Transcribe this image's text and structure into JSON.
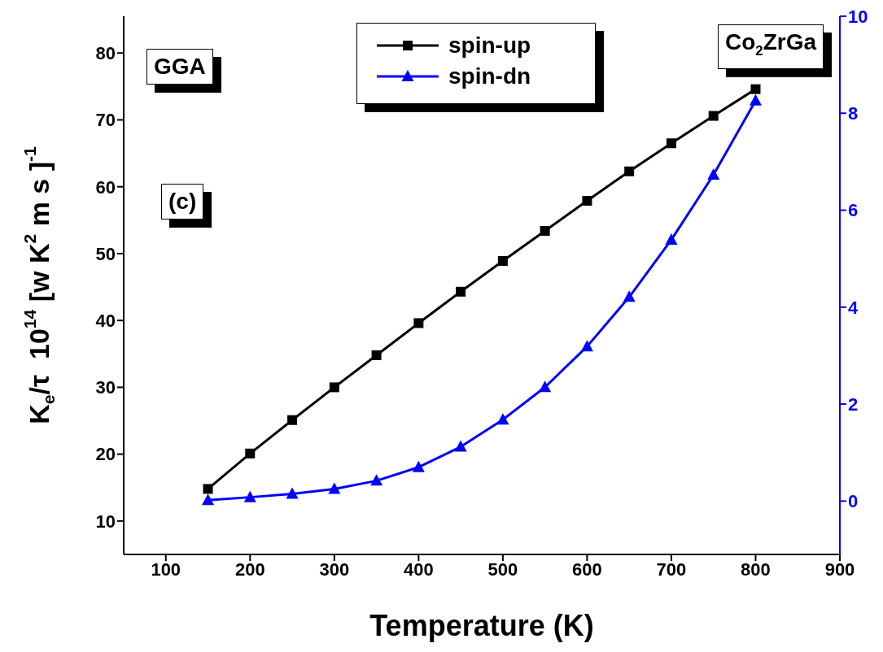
{
  "chart_data": {
    "type": "line",
    "xlabel": "Temperature (K)",
    "ylabel": "K$_{e}$/τ  10$^{14}$ [w K$^{2}$ m s ]$^{-1}$",
    "x": [
      150,
      200,
      250,
      300,
      350,
      400,
      450,
      500,
      550,
      600,
      650,
      700,
      750,
      800
    ],
    "series": [
      {
        "name": "spin-up",
        "color": "#000000",
        "marker": "square",
        "values": [
          14.8,
          20.1,
          25.1,
          30.0,
          34.8,
          39.6,
          44.3,
          48.9,
          53.4,
          57.9,
          62.3,
          66.5,
          70.6,
          74.6
        ]
      },
      {
        "name": "spin-dn",
        "color": "#0000ff",
        "marker": "triangle",
        "axis": "y2",
        "values": [
          0.02,
          0.08,
          0.15,
          0.25,
          0.42,
          0.7,
          1.12,
          1.68,
          2.35,
          3.19,
          4.21,
          5.39,
          6.73,
          8.26
        ]
      }
    ],
    "xlim": [
      50,
      900
    ],
    "xticks": [
      100,
      200,
      300,
      400,
      500,
      600,
      700,
      800,
      900
    ],
    "ylim": [
      5,
      85.5
    ],
    "yticks": [
      10,
      20,
      30,
      40,
      50,
      60,
      70,
      80
    ],
    "y2lim": [
      -1.1,
      10
    ],
    "y2ticks": [
      0,
      2,
      4,
      6,
      8,
      10
    ],
    "annotations": [
      "GGA",
      "(c)",
      "Co$_{2}$ZrGa"
    ],
    "legend": "top",
    "grid": false
  }
}
